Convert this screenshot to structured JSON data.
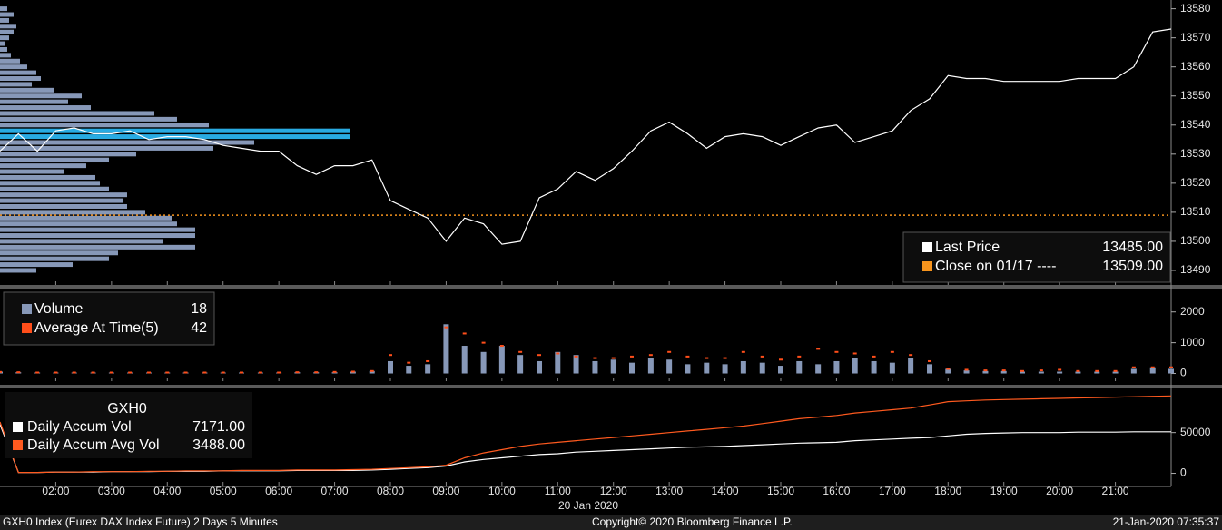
{
  "chart_data": [
    {
      "type": "line",
      "x": [
        1,
        1.33,
        1.67,
        2,
        2.33,
        2.67,
        3,
        3.33,
        3.67,
        4,
        4.33,
        4.67,
        5,
        5.33,
        5.67,
        6,
        6.33,
        6.67,
        7,
        7.33,
        7.67,
        8,
        8.33,
        8.67,
        9,
        9.33,
        9.67,
        10,
        10.33,
        10.67,
        11,
        11.33,
        11.67,
        12,
        12.33,
        12.67,
        13,
        13.33,
        13.67,
        14,
        14.33,
        14.67,
        15,
        15.33,
        15.67,
        16,
        16.33,
        16.67,
        17,
        17.33,
        17.67,
        18,
        18.33,
        18.67,
        19,
        19.33,
        19.67,
        20,
        20.33,
        20.67,
        21,
        21.33,
        21.67,
        22
      ],
      "series": [
        {
          "name": "Last Price",
          "color": "#ffffff",
          "legend_value": "13485.00",
          "values": [
            13531,
            13537,
            13531,
            13538,
            13539,
            13537,
            13537,
            13538,
            13535,
            13536,
            13536,
            13535,
            13533,
            13532,
            13531,
            13531,
            13526,
            13523,
            13526,
            13526,
            13528,
            13514,
            13511,
            13508,
            13500,
            13508,
            13506,
            13499,
            13500,
            13515,
            13518,
            13524,
            13521,
            13525,
            13531,
            13538,
            13541,
            13537,
            13532,
            13536,
            13537,
            13536,
            13533,
            13536,
            13539,
            13540,
            13534,
            13536,
            13538,
            13545,
            13549,
            13557,
            13556,
            13556,
            13555,
            13555,
            13555,
            13555,
            13556,
            13556,
            13556,
            13560,
            13572,
            13573
          ]
        }
      ],
      "reference_line": {
        "name": "Close on 01/17 ----",
        "value": 13509,
        "color": "#f7941d",
        "legend_value": "13509.00"
      },
      "profile": {
        "color": "#8798b8",
        "highlight_color": "#29abe2",
        "levels": [
          13580,
          13578,
          13576,
          13574,
          13572,
          13570,
          13568,
          13566,
          13564,
          13562,
          13560,
          13558,
          13556,
          13554,
          13552,
          13550,
          13548,
          13546,
          13544,
          13542,
          13540,
          13538,
          13536,
          13534,
          13532,
          13530,
          13528,
          13526,
          13524,
          13522,
          13520,
          13518,
          13516,
          13514,
          13512,
          13510,
          13508,
          13506,
          13504,
          13502,
          13500,
          13498,
          13496,
          13494,
          13492,
          13490
        ],
        "values": [
          8,
          15,
          10,
          18,
          15,
          10,
          5,
          8,
          12,
          22,
          30,
          40,
          45,
          35,
          60,
          90,
          75,
          100,
          170,
          195,
          230,
          385,
          385,
          280,
          235,
          150,
          120,
          95,
          70,
          105,
          110,
          120,
          140,
          135,
          140,
          160,
          190,
          195,
          215,
          215,
          180,
          215,
          130,
          120,
          80,
          40
        ]
      },
      "xlim": [
        1,
        22
      ],
      "ylim": [
        13485,
        13583
      ],
      "yticks": [
        13490,
        13500,
        13510,
        13520,
        13530,
        13540,
        13550,
        13560,
        13570,
        13580
      ]
    },
    {
      "type": "bar",
      "x": [
        1,
        1.33,
        1.67,
        2,
        2.33,
        2.67,
        3,
        3.33,
        3.67,
        4,
        4.33,
        4.67,
        5,
        5.33,
        5.67,
        6,
        6.33,
        6.67,
        7,
        7.33,
        7.67,
        8,
        8.33,
        8.67,
        9,
        9.33,
        9.67,
        10,
        10.33,
        10.67,
        11,
        11.33,
        11.67,
        12,
        12.33,
        12.67,
        13,
        13.33,
        13.67,
        14,
        14.33,
        14.67,
        15,
        15.33,
        15.67,
        16,
        16.33,
        16.67,
        17,
        17.33,
        17.67,
        18,
        18.33,
        18.67,
        19,
        19.33,
        19.67,
        20,
        20.33,
        20.67,
        21,
        21.33,
        21.67,
        22
      ],
      "series": [
        {
          "name": "Volume",
          "color": "#8798b8",
          "legend_value": "18",
          "values": [
            60,
            40,
            30,
            30,
            30,
            30,
            30,
            30,
            30,
            30,
            30,
            30,
            30,
            30,
            30,
            30,
            40,
            40,
            40,
            60,
            80,
            400,
            250,
            300,
            1600,
            900,
            700,
            900,
            600,
            400,
            700,
            600,
            400,
            450,
            350,
            500,
            450,
            300,
            350,
            300,
            400,
            350,
            250,
            400,
            300,
            400,
            500,
            400,
            350,
            500,
            300,
            150,
            100,
            80,
            80,
            60,
            60,
            60,
            60,
            60,
            60,
            150,
            200,
            150
          ]
        },
        {
          "name": "Average At Time(5)",
          "color": "#ff4e1a",
          "legend_value": "42",
          "values": [
            50,
            40,
            30,
            30,
            30,
            30,
            30,
            30,
            30,
            30,
            30,
            30,
            30,
            30,
            30,
            30,
            40,
            40,
            50,
            60,
            80,
            600,
            350,
            400,
            1500,
            1300,
            1000,
            900,
            700,
            600,
            650,
            550,
            500,
            500,
            550,
            600,
            700,
            550,
            500,
            500,
            700,
            550,
            450,
            550,
            800,
            700,
            650,
            550,
            700,
            600,
            400,
            150,
            120,
            100,
            100,
            80,
            100,
            120,
            80,
            80,
            80,
            200,
            200,
            200
          ]
        }
      ],
      "xlim": [
        1,
        22
      ],
      "ylim": [
        -250,
        2700
      ],
      "yticks": [
        0,
        1000,
        2000
      ]
    },
    {
      "type": "line",
      "title": "GXH0",
      "x": [
        1,
        1.33,
        1.67,
        2,
        2.33,
        2.67,
        3,
        3.33,
        3.67,
        4,
        4.33,
        4.67,
        5,
        5.33,
        5.67,
        6,
        6.33,
        6.67,
        7,
        7.33,
        7.67,
        8,
        8.33,
        8.67,
        9,
        9.33,
        9.67,
        10,
        10.33,
        10.67,
        11,
        11.33,
        11.67,
        12,
        12.33,
        12.67,
        13,
        13.33,
        13.67,
        14,
        14.33,
        14.67,
        15,
        15.33,
        15.67,
        16,
        16.33,
        16.67,
        17,
        17.33,
        17.67,
        18,
        18.33,
        18.67,
        19,
        19.33,
        19.67,
        20,
        20.33,
        20.67,
        21,
        21.33,
        21.67,
        22
      ],
      "series": [
        {
          "name": "Daily Accum Vol",
          "color": "#ffffff",
          "legend_value": "7171.00",
          "values": [
            60000,
            1000,
            1000,
            1500,
            1500,
            1500,
            2000,
            2000,
            2000,
            2500,
            2500,
            2500,
            3000,
            3000,
            3000,
            3000,
            3500,
            3500,
            3500,
            3500,
            4000,
            5000,
            6000,
            7000,
            9000,
            14000,
            17000,
            19000,
            21000,
            23000,
            24000,
            26000,
            27000,
            28000,
            29000,
            30000,
            31000,
            32000,
            32500,
            33000,
            34000,
            35000,
            36000,
            37000,
            37500,
            38000,
            40000,
            41000,
            42000,
            43000,
            44000,
            46000,
            48000,
            49000,
            49500,
            50000,
            50000,
            50000,
            50500,
            50500,
            50500,
            51000,
            51000,
            51000
          ]
        },
        {
          "name": "Daily Accum Avg Vol",
          "color": "#ff5a1f",
          "legend_value": "3488.00",
          "values": [
            63000,
            1000,
            1000,
            1500,
            1500,
            2000,
            2000,
            2000,
            2500,
            2500,
            3000,
            3000,
            3000,
            3500,
            3500,
            3500,
            4000,
            4000,
            4000,
            4500,
            5000,
            6000,
            7000,
            8000,
            10000,
            19000,
            25000,
            29000,
            33000,
            36000,
            38000,
            40000,
            42000,
            44000,
            46000,
            48000,
            50000,
            52000,
            54000,
            56000,
            58000,
            61000,
            64000,
            67000,
            69000,
            71000,
            74000,
            76000,
            78000,
            80000,
            84000,
            88000,
            89000,
            90000,
            90500,
            91000,
            91500,
            92000,
            92500,
            93000,
            93500,
            94000,
            94500,
            95000
          ]
        }
      ],
      "xlim": [
        1,
        22
      ],
      "ylim": [
        -15000,
        102000
      ],
      "yticks": [
        0,
        50000
      ],
      "xticks": [
        {
          "value": 2,
          "label": "02:00"
        },
        {
          "value": 3,
          "label": "03:00"
        },
        {
          "value": 4,
          "label": "04:00"
        },
        {
          "value": 5,
          "label": "05:00"
        },
        {
          "value": 6,
          "label": "06:00"
        },
        {
          "value": 7,
          "label": "07:00"
        },
        {
          "value": 8,
          "label": "08:00"
        },
        {
          "value": 9,
          "label": "09:00"
        },
        {
          "value": 10,
          "label": "10:00"
        },
        {
          "value": 11,
          "label": "11:00"
        },
        {
          "value": 12,
          "label": "12:00"
        },
        {
          "value": 13,
          "label": "13:00"
        },
        {
          "value": 14,
          "label": "14:00"
        },
        {
          "value": 15,
          "label": "15:00"
        },
        {
          "value": 16,
          "label": "16:00"
        },
        {
          "value": 17,
          "label": "17:00"
        },
        {
          "value": 18,
          "label": "18:00"
        },
        {
          "value": 19,
          "label": "19:00"
        },
        {
          "value": 20,
          "label": "20:00"
        },
        {
          "value": 21,
          "label": "21:00"
        }
      ],
      "xlabel": "20 Jan 2020"
    }
  ],
  "footer": {
    "left": "GXH0 Index (Eurex DAX Index Future) 2 Days 5 Minutes",
    "center": "Copyright© 2020 Bloomberg Finance L.P.",
    "right": "21-Jan-2020 07:35:37"
  }
}
